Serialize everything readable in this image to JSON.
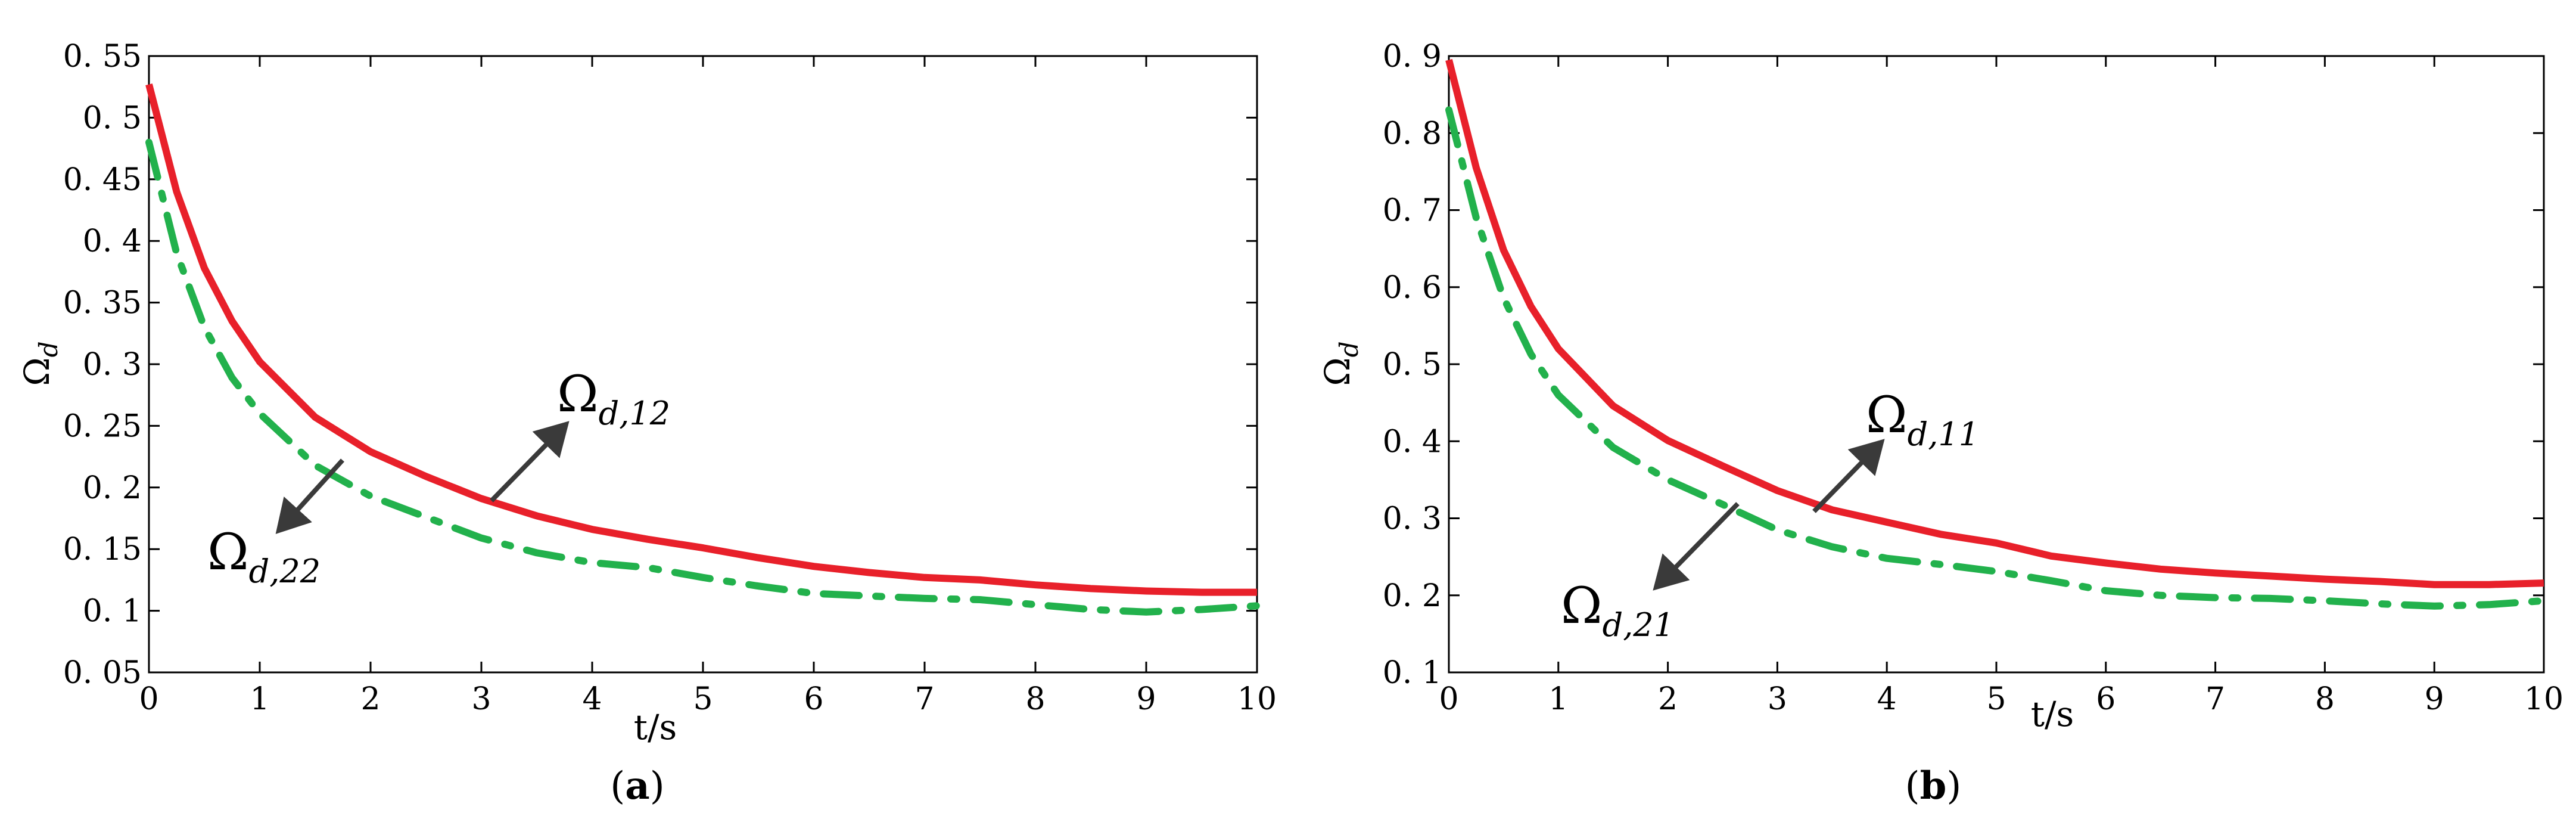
{
  "chart_data": [
    {
      "type": "line",
      "panel_label": {
        "open": "(",
        "letter": "a",
        "close": ")"
      },
      "title": "",
      "xlabel": "t/s",
      "ylabel": {
        "main": "Ω",
        "sub": "d"
      },
      "xlim": [
        0,
        10
      ],
      "ylim": [
        0.05,
        0.55
      ],
      "xticks": [
        0,
        1,
        2,
        3,
        4,
        5,
        6,
        7,
        8,
        9,
        10
      ],
      "xtick_labels": [
        "0",
        "1",
        "2",
        "3",
        "4",
        "5",
        "6",
        "7",
        "8",
        "9",
        "10"
      ],
      "yticks": [
        0.05,
        0.1,
        0.15,
        0.2,
        0.25,
        0.3,
        0.35,
        0.4,
        0.45,
        0.5,
        0.55
      ],
      "ytick_labels": [
        "0. 05",
        "0. 1",
        "0. 15",
        "0. 2",
        "0. 25",
        "0. 3",
        "0. 35",
        "0. 4",
        "0. 45",
        "0. 5",
        "0. 55"
      ],
      "grid": false,
      "legend": "none",
      "series": [
        {
          "name": "Ω d,12",
          "color": "#e8202a",
          "style": "solid",
          "x": [
            0,
            0.25,
            0.5,
            0.75,
            1,
            1.5,
            2,
            2.5,
            3,
            3.5,
            4,
            4.5,
            5,
            5.5,
            6,
            6.5,
            7,
            7.5,
            8,
            8.5,
            9,
            9.5,
            10
          ],
          "y": [
            0.527,
            0.44,
            0.378,
            0.335,
            0.302,
            0.257,
            0.229,
            0.209,
            0.191,
            0.177,
            0.166,
            0.158,
            0.151,
            0.143,
            0.136,
            0.131,
            0.127,
            0.125,
            0.121,
            0.118,
            0.116,
            0.115,
            0.115
          ]
        },
        {
          "name": "Ω d,22",
          "color": "#22b14c",
          "style": "dashdot",
          "x": [
            0,
            0.25,
            0.5,
            0.75,
            1,
            1.5,
            2,
            2.5,
            3,
            3.5,
            4,
            4.5,
            5,
            5.5,
            6,
            6.5,
            7,
            7.5,
            8,
            8.5,
            9,
            9.5,
            10
          ],
          "y": [
            0.48,
            0.39,
            0.33,
            0.289,
            0.26,
            0.218,
            0.193,
            0.176,
            0.159,
            0.147,
            0.139,
            0.135,
            0.127,
            0.12,
            0.114,
            0.112,
            0.11,
            0.109,
            0.105,
            0.101,
            0.099,
            0.101,
            0.104
          ]
        }
      ],
      "annotations": [
        {
          "main": "Ω",
          "sub": "d,12",
          "series": 0,
          "point": [
            3.1,
            0.188
          ],
          "direction": "up-right"
        },
        {
          "main": "Ω",
          "sub": "d,22",
          "series": 1,
          "point": [
            1.75,
            0.218
          ],
          "direction": "down-left"
        }
      ]
    },
    {
      "type": "line",
      "panel_label": {
        "open": "(",
        "letter": "b",
        "close": ")"
      },
      "title": "",
      "xlabel": "t/s",
      "ylabel": {
        "main": "Ω",
        "sub": "d"
      },
      "xlim": [
        0,
        10
      ],
      "ylim": [
        0.1,
        0.9
      ],
      "xticks": [
        0,
        1,
        2,
        3,
        4,
        5,
        6,
        7,
        8,
        9,
        10
      ],
      "xtick_labels": [
        "0",
        "1",
        "2",
        "3",
        "4",
        "5",
        "6",
        "7",
        "8",
        "9",
        "10"
      ],
      "yticks": [
        0.1,
        0.2,
        0.3,
        0.4,
        0.5,
        0.6,
        0.7,
        0.8,
        0.9
      ],
      "ytick_labels": [
        "0. 1",
        "0. 2",
        "0. 3",
        "0. 4",
        "0. 5",
        "0. 6",
        "0. 7",
        "0. 8",
        "0. 9"
      ],
      "grid": false,
      "legend": "none",
      "series": [
        {
          "name": "Ω d,11",
          "color": "#e8202a",
          "style": "solid",
          "x": [
            0,
            0.25,
            0.5,
            0.75,
            1,
            1.5,
            2,
            2.5,
            3,
            3.5,
            4,
            4.5,
            5,
            5.5,
            6,
            6.5,
            7,
            7.5,
            8,
            8.5,
            9,
            9.5,
            10
          ],
          "y": [
            0.895,
            0.755,
            0.648,
            0.575,
            0.52,
            0.446,
            0.401,
            0.368,
            0.336,
            0.311,
            0.295,
            0.279,
            0.268,
            0.251,
            0.242,
            0.234,
            0.229,
            0.225,
            0.221,
            0.218,
            0.214,
            0.214,
            0.216
          ]
        },
        {
          "name": "Ω d,21",
          "color": "#22b14c",
          "style": "dashdot",
          "x": [
            0,
            0.25,
            0.5,
            0.75,
            1,
            1.5,
            2,
            2.5,
            3,
            3.5,
            4,
            4.5,
            5,
            5.5,
            6,
            6.5,
            7,
            7.5,
            8,
            8.5,
            9,
            9.5,
            10
          ],
          "y": [
            0.83,
            0.69,
            0.586,
            0.513,
            0.46,
            0.392,
            0.35,
            0.318,
            0.285,
            0.263,
            0.248,
            0.24,
            0.231,
            0.219,
            0.206,
            0.2,
            0.197,
            0.196,
            0.193,
            0.189,
            0.186,
            0.188,
            0.193
          ]
        }
      ],
      "annotations": [
        {
          "main": "Ω",
          "sub": "d,11",
          "series": 0,
          "point": [
            3.4,
            0.315
          ],
          "direction": "up-right"
        },
        {
          "main": "Ω",
          "sub": "d,21",
          "series": 1,
          "point": [
            2.65,
            0.318
          ],
          "direction": "down-left"
        }
      ]
    }
  ]
}
